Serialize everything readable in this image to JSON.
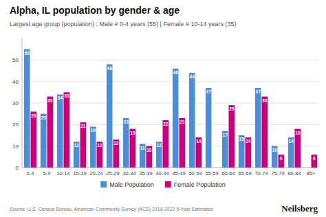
{
  "chart_data": {
    "type": "bar",
    "title": "Alpha, IL population by gender & age",
    "subtitle": "Largest age group (population) : Male # 0-4 years (55) | Female # 10-14 years (35)",
    "annotations": [
      "Source: U.S. Census Bureau, American Community Survey (ACS) 2018-2022 5-Year Estimates",
      "Neilsberg"
    ],
    "categories": [
      "0-4",
      "5-9",
      "10-14",
      "15-19",
      "20-24",
      "25-29",
      "30-34",
      "35-39",
      "40-44",
      "45-49",
      "50-54",
      "55-59",
      "60-64",
      "65-69",
      "70-74",
      "75-79",
      "80-84",
      "85+"
    ],
    "series": [
      {
        "name": "Male Population",
        "color": "#4D8FD6",
        "values": [
          55,
          25,
          34,
          12,
          19,
          48,
          23,
          11,
          12,
          46,
          44,
          37,
          17,
          15,
          37,
          10,
          14,
          0
        ]
      },
      {
        "name": "Female Population",
        "color": "#CC007A",
        "values": [
          26,
          33,
          35,
          21,
          12,
          13,
          18,
          10,
          22,
          23,
          14,
          0,
          29,
          14,
          33,
          6,
          18,
          6
        ]
      }
    ],
    "ylim": [
      0,
      60
    ],
    "yticks": [
      0,
      10,
      20,
      30,
      40,
      50
    ],
    "grid": true,
    "data_labels": true,
    "legend": "bottom"
  }
}
